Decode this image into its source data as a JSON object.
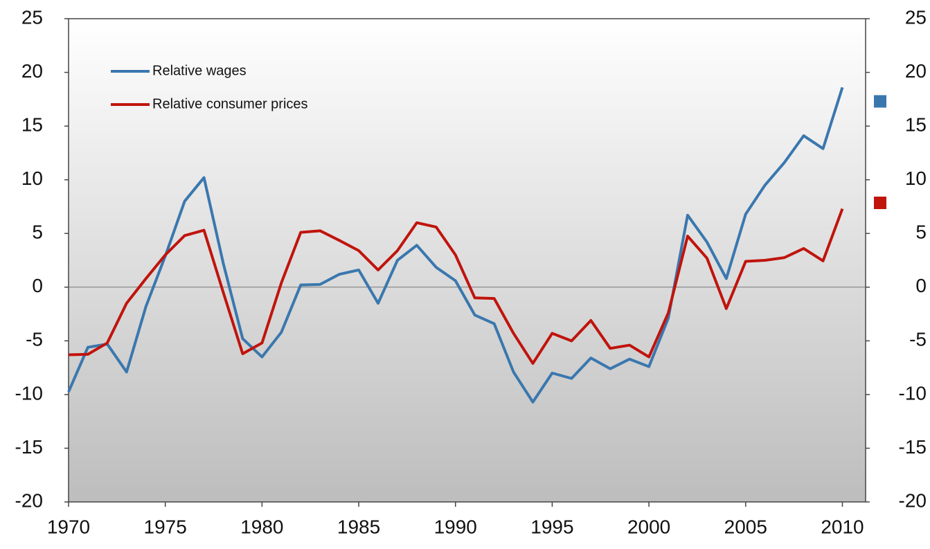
{
  "chart_data": {
    "type": "line",
    "x": [
      1970,
      1971,
      1972,
      1973,
      1974,
      1975,
      1976,
      1977,
      1978,
      1979,
      1980,
      1981,
      1982,
      1983,
      1984,
      1985,
      1986,
      1987,
      1988,
      1989,
      1990,
      1991,
      1992,
      1993,
      1994,
      1995,
      1996,
      1997,
      1998,
      1999,
      2000,
      2001,
      2002,
      2003,
      2004,
      2005,
      2006,
      2007,
      2008,
      2009,
      2010
    ],
    "series": [
      {
        "name": "Relative wages",
        "color": "#3a77ae",
        "values": [
          -9.75,
          -5.6,
          -5.3,
          -7.9,
          -1.8,
          2.9,
          8.0,
          10.2,
          2.2,
          -4.8,
          -6.5,
          -4.2,
          0.2,
          0.25,
          1.2,
          1.6,
          -1.5,
          2.5,
          3.9,
          1.85,
          0.6,
          -2.6,
          -3.4,
          -7.9,
          -10.7,
          -8.0,
          -8.5,
          -6.6,
          -7.6,
          -6.7,
          -7.4,
          -2.9,
          6.7,
          4.2,
          0.8,
          6.8,
          9.5,
          11.6,
          14.1,
          12.9,
          18.6
        ],
        "end_marker": 17.3
      },
      {
        "name": "Relative consumer prices",
        "color": "#c0140c",
        "values": [
          -6.3,
          -6.25,
          -5.2,
          -1.5,
          0.8,
          3.0,
          4.8,
          5.3,
          -0.5,
          -6.2,
          -5.2,
          0.4,
          5.1,
          5.25,
          4.35,
          3.4,
          1.6,
          3.4,
          6.0,
          5.6,
          3.0,
          -1.0,
          -1.05,
          -4.3,
          -7.1,
          -4.3,
          -5.0,
          -3.1,
          -5.7,
          -5.4,
          -6.5,
          -2.4,
          4.75,
          2.7,
          -2.0,
          2.4,
          2.5,
          2.75,
          3.6,
          2.45,
          7.3
        ],
        "end_marker": 7.85
      }
    ],
    "xlim": [
      1970,
      2011.2
    ],
    "xticks": [
      1970,
      1975,
      1980,
      1985,
      1990,
      1995,
      2000,
      2005,
      2010
    ],
    "ylim": [
      -20,
      25
    ],
    "yticks": [
      -20,
      -15,
      -10,
      -5,
      0,
      5,
      10,
      15,
      20,
      25
    ],
    "y2lim": [
      -20,
      25
    ],
    "y2ticks": [
      -20,
      -15,
      -10,
      -5,
      0,
      5,
      10,
      15,
      20,
      25
    ],
    "legend": "upper left"
  }
}
